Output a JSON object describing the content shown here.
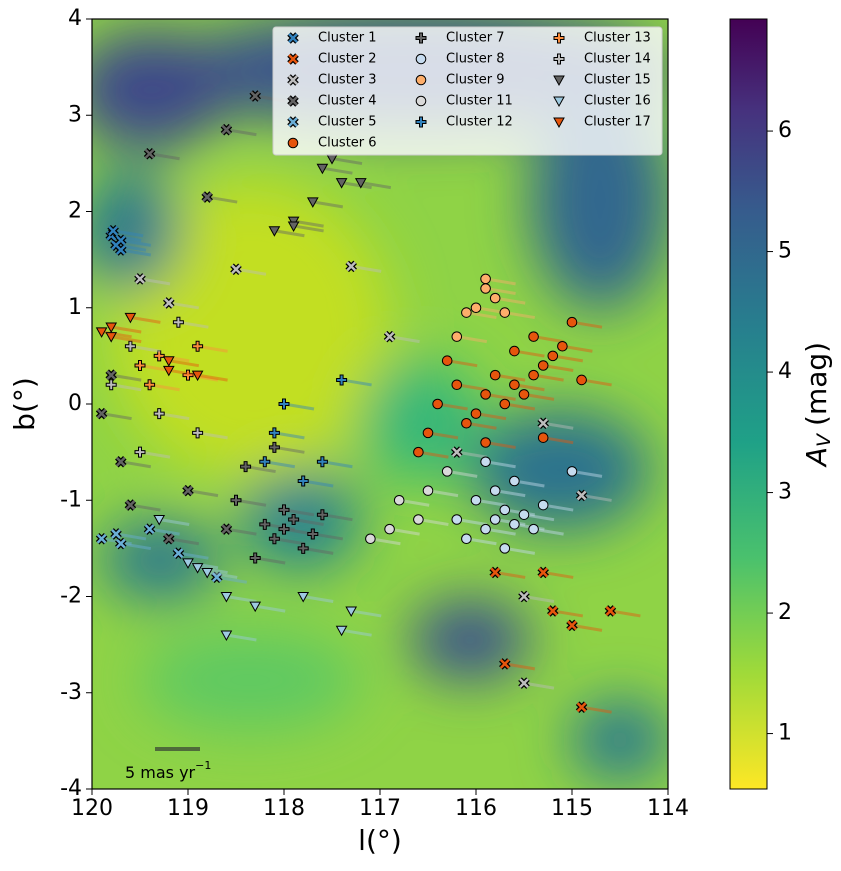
{
  "chart_data": {
    "type": "scatter",
    "x_label": "l(°)",
    "y_label": "b(°)",
    "xlim": [
      120,
      114
    ],
    "ylim": [
      -4,
      4
    ],
    "xticks": [
      120,
      119,
      118,
      117,
      116,
      115,
      114
    ],
    "yticks": [
      -4,
      -3,
      -2,
      -1,
      0,
      1,
      2,
      3,
      4
    ],
    "legend_position": "upper right",
    "scale_bar_label": {
      "text": "5 mas yr",
      "superscript": "−1"
    },
    "colorbar": {
      "colormap": "viridis_r",
      "lim": [
        0.54,
        6.93
      ],
      "ticks": [
        1,
        2,
        3,
        4,
        5,
        6
      ],
      "label": {
        "symbol": "A",
        "subscript": "V",
        "unit": "(mag)"
      }
    },
    "series": [
      {
        "name": "Cluster 1",
        "color": "#3182bd",
        "marker": "x",
        "x": [
          119.7,
          119.75,
          119.8,
          119.7,
          119.78
        ],
        "y": [
          1.7,
          1.65,
          1.75,
          1.6,
          1.8
        ]
      },
      {
        "name": "Cluster 2",
        "color": "#e6550d",
        "marker": "x",
        "x": [
          115.2,
          115.0,
          114.6,
          115.8,
          115.3,
          115.7,
          114.9
        ],
        "y": [
          -2.15,
          -2.3,
          -2.15,
          -1.75,
          -1.75,
          -2.7,
          -3.15
        ]
      },
      {
        "name": "Cluster 3",
        "color": "#bdbdbd",
        "marker": "x",
        "x": [
          119.5,
          119.2,
          118.5,
          117.3,
          116.9,
          116.2,
          115.3,
          114.9,
          115.5,
          115.5
        ],
        "y": [
          1.3,
          1.05,
          1.4,
          1.43,
          0.7,
          -0.5,
          -0.2,
          -0.95,
          -2.0,
          -2.9
        ]
      },
      {
        "name": "Cluster 4",
        "color": "#636363",
        "marker": "x",
        "x": [
          119.9,
          119.8,
          119.7,
          119.6,
          119.2,
          119.0,
          118.6,
          118.8,
          118.3,
          118.6,
          119.4
        ],
        "y": [
          -0.1,
          0.3,
          -0.6,
          -1.05,
          -1.4,
          -0.9,
          -1.3,
          2.15,
          3.2,
          2.85,
          2.6
        ]
      },
      {
        "name": "Cluster 5",
        "color": "#6baed6",
        "marker": "x",
        "x": [
          119.4,
          119.1,
          118.7,
          119.9,
          119.7,
          119.75
        ],
        "y": [
          -1.3,
          -1.55,
          -1.8,
          -1.4,
          -1.45,
          -1.35
        ]
      },
      {
        "name": "Cluster 6",
        "color": "#e6550d",
        "marker": "o",
        "x": [
          115.6,
          115.4,
          115.5,
          115.7,
          115.3,
          115.2,
          115.8,
          115.9,
          116.0,
          116.2,
          116.4,
          116.5,
          115.1,
          115.0,
          114.9,
          115.4,
          115.6,
          116.1,
          115.9,
          115.3,
          116.6,
          116.3
        ],
        "y": [
          0.2,
          0.3,
          0.1,
          0.0,
          0.4,
          0.5,
          0.3,
          0.1,
          -0.1,
          0.2,
          0.0,
          -0.3,
          0.6,
          0.85,
          0.25,
          0.7,
          0.55,
          -0.2,
          -0.4,
          -0.35,
          -0.5,
          0.45
        ]
      },
      {
        "name": "Cluster 7",
        "color": "#636363",
        "marker": "P",
        "x": [
          118.0,
          117.9,
          118.1,
          117.8,
          118.2,
          117.7,
          118.0,
          118.3,
          118.5,
          117.6,
          118.4,
          118.1
        ],
        "y": [
          -1.3,
          -1.2,
          -1.4,
          -1.5,
          -1.25,
          -1.35,
          -1.1,
          -1.6,
          -1.0,
          -1.15,
          -0.65,
          -0.45
        ]
      },
      {
        "name": "Cluster 8",
        "color": "#c6dbef",
        "marker": "o",
        "x": [
          115.8,
          115.7,
          115.6,
          115.9,
          116.0,
          115.5,
          115.4,
          116.1,
          115.8,
          115.6,
          116.2,
          115.3,
          115.0,
          115.7,
          115.9
        ],
        "y": [
          -1.2,
          -1.1,
          -1.25,
          -1.3,
          -1.0,
          -1.15,
          -1.3,
          -1.4,
          -0.9,
          -0.8,
          -1.2,
          -1.05,
          -0.7,
          -1.5,
          -0.6
        ]
      },
      {
        "name": "Cluster 9",
        "color": "#fdae6b",
        "marker": "o",
        "x": [
          115.9,
          116.0,
          115.8,
          116.1,
          115.9,
          116.2,
          115.7
        ],
        "y": [
          1.3,
          1.0,
          1.1,
          0.95,
          1.2,
          0.7,
          0.95
        ]
      },
      {
        "name": "Cluster 11",
        "color": "#d9d9d9",
        "marker": "o",
        "x": [
          116.8,
          116.6,
          116.9,
          117.1,
          116.5,
          116.3
        ],
        "y": [
          -1.0,
          -1.2,
          -1.3,
          -1.4,
          -0.9,
          -0.7
        ]
      },
      {
        "name": "Cluster 12",
        "color": "#3182bd",
        "marker": "P",
        "x": [
          118.0,
          118.1,
          117.6,
          117.4,
          117.8,
          118.2
        ],
        "y": [
          0.0,
          -0.3,
          -0.6,
          0.25,
          -0.8,
          -0.6
        ]
      },
      {
        "name": "Cluster 13",
        "color": "#fd8d3c",
        "marker": "P",
        "x": [
          119.0,
          119.3,
          119.5,
          118.9,
          119.4
        ],
        "y": [
          0.3,
          0.5,
          0.4,
          0.6,
          0.2
        ]
      },
      {
        "name": "Cluster 14",
        "color": "#bdbdbd",
        "marker": "P",
        "x": [
          119.8,
          119.6,
          119.3,
          118.9,
          119.1,
          119.5
        ],
        "y": [
          0.2,
          0.6,
          -0.1,
          -0.3,
          0.85,
          -0.5
        ]
      },
      {
        "name": "Cluster 15",
        "color": "#636363",
        "marker": "v",
        "x": [
          117.9,
          117.7,
          117.4,
          117.6,
          118.1,
          117.2,
          117.5,
          117.9
        ],
        "y": [
          1.9,
          2.1,
          2.3,
          2.45,
          1.8,
          2.3,
          2.55,
          1.85
        ]
      },
      {
        "name": "Cluster 16",
        "color": "#9ecae1",
        "marker": "v",
        "x": [
          119.3,
          119.0,
          118.8,
          118.9,
          118.6,
          118.3,
          117.8,
          117.3,
          118.6,
          117.4
        ],
        "y": [
          -1.2,
          -1.65,
          -1.75,
          -1.7,
          -2.0,
          -2.1,
          -2.0,
          -2.15,
          -2.4,
          -2.35
        ]
      },
      {
        "name": "Cluster 17",
        "color": "#e6550d",
        "marker": "v",
        "x": [
          119.8,
          119.8,
          119.9,
          119.6,
          119.2,
          118.9,
          119.2
        ],
        "y": [
          0.8,
          0.7,
          0.75,
          0.9,
          0.45,
          0.3,
          0.35
        ]
      }
    ]
  }
}
